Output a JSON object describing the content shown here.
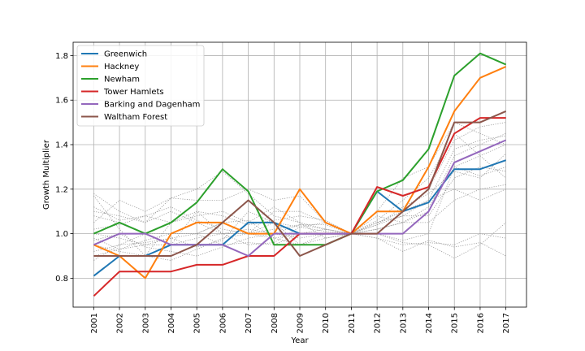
{
  "chart_data": {
    "type": "line",
    "xlabel": "Year",
    "ylabel": "Growth Multiplier",
    "x": [
      2001,
      2002,
      2003,
      2004,
      2005,
      2006,
      2007,
      2008,
      2009,
      2010,
      2011,
      2012,
      2013,
      2014,
      2015,
      2016,
      2017
    ],
    "x_tick_labels": [
      "2001",
      "2002",
      "2003",
      "2004",
      "2005",
      "2006",
      "2007",
      "2008",
      "2009",
      "2010",
      "2011",
      "2012",
      "2013",
      "2014",
      "2015",
      "2016",
      "2017"
    ],
    "ylim": [
      0.67,
      1.86
    ],
    "y_ticks": [
      0.8,
      1.0,
      1.2,
      1.4,
      1.6,
      1.8
    ],
    "y_tick_labels": [
      "0.8",
      "1.0",
      "1.2",
      "1.4",
      "1.6",
      "1.8"
    ],
    "grid": true,
    "legend_position": "top-left",
    "series": [
      {
        "name": "Greenwich",
        "color": "#1f77b4",
        "values": [
          0.81,
          0.9,
          0.9,
          0.95,
          0.95,
          0.95,
          1.05,
          1.05,
          1.0,
          1.0,
          1.0,
          1.19,
          1.1,
          1.14,
          1.29,
          1.29,
          1.33
        ]
      },
      {
        "name": "Hackney",
        "color": "#ff7f0e",
        "values": [
          0.95,
          0.9,
          0.8,
          1.0,
          1.05,
          1.05,
          1.0,
          1.0,
          1.2,
          1.05,
          1.0,
          1.1,
          1.1,
          1.3,
          1.55,
          1.7,
          1.75
        ]
      },
      {
        "name": "Newham",
        "color": "#2ca02c",
        "values": [
          1.0,
          1.05,
          1.0,
          1.05,
          1.14,
          1.29,
          1.19,
          0.95,
          0.95,
          0.95,
          1.0,
          1.19,
          1.24,
          1.38,
          1.71,
          1.81,
          1.76
        ]
      },
      {
        "name": "Tower Hamlets",
        "color": "#d62728",
        "values": [
          0.72,
          0.83,
          0.83,
          0.83,
          0.86,
          0.86,
          0.9,
          0.9,
          1.0,
          1.0,
          1.0,
          1.21,
          1.17,
          1.21,
          1.45,
          1.52,
          1.52
        ]
      },
      {
        "name": "Barking and Dagenham",
        "color": "#9467bd",
        "values": [
          0.95,
          1.0,
          1.0,
          0.95,
          0.95,
          0.95,
          0.9,
          1.0,
          1.0,
          1.0,
          1.0,
          1.0,
          1.0,
          1.1,
          1.32,
          1.37,
          1.42
        ]
      },
      {
        "name": "Waltham Forest",
        "color": "#8c564b",
        "values": [
          0.9,
          0.9,
          0.9,
          0.9,
          0.95,
          1.05,
          1.15,
          1.05,
          0.9,
          0.95,
          1.0,
          1.0,
          1.1,
          1.2,
          1.5,
          1.5,
          1.55
        ]
      }
    ],
    "background_series_color": "#999999",
    "background_series": [
      [
        1.18,
        1.1,
        1.05,
        1.16,
        1.2,
        1.28,
        1.18,
        1.08,
        1.05,
        1.02,
        1.0,
        1.1,
        1.25,
        1.3,
        1.5,
        1.45,
        1.4
      ],
      [
        1.05,
        1.15,
        1.1,
        1.16,
        1.15,
        1.15,
        1.2,
        1.15,
        1.17,
        1.05,
        1.0,
        1.05,
        1.1,
        1.2,
        1.42,
        1.48,
        1.5
      ],
      [
        0.88,
        0.95,
        1.0,
        0.95,
        1.1,
        1.0,
        0.95,
        0.96,
        1.03,
        1.05,
        1.0,
        1.02,
        1.05,
        1.05,
        1.15,
        1.2,
        1.22
      ],
      [
        1.17,
        1.02,
        0.9,
        1.05,
        1.08,
        1.1,
        1.05,
        1.12,
        1.05,
        0.98,
        1.0,
        0.98,
        0.92,
        0.97,
        0.94,
        0.96,
        0.9
      ],
      [
        0.98,
        0.93,
        0.95,
        0.98,
        0.94,
        0.97,
        1.1,
        1.05,
        0.95,
        1.0,
        1.0,
        1.0,
        0.97,
        1.0,
        1.3,
        1.26,
        1.3
      ],
      [
        1.08,
        1.05,
        1.0,
        1.0,
        1.0,
        1.05,
        1.0,
        1.1,
        1.1,
        1.05,
        1.0,
        1.08,
        1.05,
        1.12,
        1.3,
        1.35,
        1.4
      ],
      [
        0.95,
        0.92,
        0.9,
        0.88,
        0.93,
        0.98,
        1.0,
        0.98,
        1.0,
        1.0,
        1.0,
        1.05,
        1.1,
        1.15,
        1.2,
        1.15,
        1.2
      ],
      [
        1.1,
        1.08,
        1.05,
        1.1,
        1.05,
        1.0,
        1.0,
        1.02,
        1.04,
        1.02,
        1.0,
        1.02,
        1.05,
        1.1,
        1.35,
        1.4,
        1.45
      ],
      [
        0.92,
        0.95,
        0.96,
        0.98,
        1.0,
        1.05,
        1.06,
        0.98,
        0.95,
        0.98,
        1.0,
        1.05,
        1.08,
        1.08,
        1.25,
        1.3,
        1.28
      ],
      [
        1.0,
        0.98,
        0.95,
        0.95,
        0.98,
        1.0,
        1.02,
        1.0,
        0.98,
        1.0,
        1.0,
        0.98,
        0.95,
        0.96,
        0.95,
        1.0,
        0.98
      ],
      [
        0.9,
        0.93,
        0.97,
        1.0,
        1.0,
        0.95,
        0.96,
        0.95,
        1.0,
        1.02,
        1.0,
        1.0,
        0.96,
        0.95,
        0.89,
        0.95,
        1.05
      ],
      [
        1.12,
        1.06,
        1.08,
        1.05,
        1.1,
        1.08,
        1.04,
        1.06,
        1.08,
        1.06,
        1.0,
        1.04,
        1.08,
        1.15,
        1.38,
        1.42,
        1.44
      ],
      [
        0.97,
        1.0,
        0.94,
        0.92,
        0.9,
        0.94,
        0.98,
        1.0,
        1.04,
        1.04,
        1.0,
        1.04,
        1.12,
        1.18,
        1.28,
        1.25,
        1.36
      ],
      [
        1.02,
        1.04,
        1.08,
        1.12,
        1.06,
        1.02,
        1.0,
        1.05,
        1.03,
        1.01,
        1.0,
        1.06,
        1.15,
        1.25,
        1.45,
        1.35,
        1.25
      ]
    ]
  }
}
